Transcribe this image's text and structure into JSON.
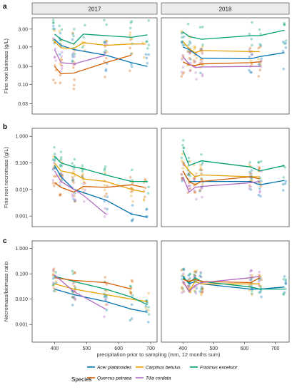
{
  "chart_data": {
    "type": "scatter",
    "facets": [
      "2017",
      "2018"
    ],
    "xlabel": "precipitation prior to sampling (mm, 12 months sum)",
    "x_ticks": [
      400,
      500,
      600,
      700
    ],
    "legend": {
      "title": "Species",
      "placement": "bottom",
      "items": [
        {
          "name": "Acer platanoides",
          "color": "#0072B2"
        },
        {
          "name": "Carpinus betulus",
          "color": "#E69F00"
        },
        {
          "name": "Fraxinus excelsior",
          "color": "#009E73"
        },
        {
          "name": "Quercus petraea",
          "color": "#D55E00"
        },
        {
          "name": "Tilia cordata",
          "color": "#B069C0"
        }
      ]
    },
    "panels": [
      {
        "tag": "a",
        "ylabel": "Fine root biomass (g/L)",
        "y_scale": "log",
        "ylim": [
          0.016,
          6
        ],
        "y_ticks": [
          0.03,
          0.1,
          0.3,
          1.0,
          3.0
        ],
        "y_tick_labels": [
          "0.03",
          "0.10",
          "0.30",
          "1.00",
          "3.00"
        ],
        "series": {
          "2017": [
            {
              "species": "Acer platanoides",
              "x": [
                400,
                420,
                460,
                560,
                640,
                690
              ],
              "y": [
                1.6,
                1.1,
                0.85,
                0.6,
                0.38,
                0.3
              ]
            },
            {
              "species": "Carpinus betulus",
              "x": [
                400,
                420,
                460,
                490,
                560,
                640,
                680
              ],
              "y": [
                1.4,
                0.95,
                0.9,
                1.3,
                1.1,
                1.2,
                1.2
              ]
            },
            {
              "species": "Fraxinus excelsior",
              "x": [
                400,
                420,
                460,
                490,
                560,
                640,
                690
              ],
              "y": [
                2.2,
                1.6,
                1.2,
                2.2,
                2.0,
                1.8,
                2.1
              ]
            },
            {
              "species": "Quercus petraea",
              "x": [
                400,
                420,
                460,
                560,
                640
              ],
              "y": [
                0.3,
                0.19,
                0.2,
                0.38,
                0.6
              ]
            },
            {
              "species": "Tilia cordata",
              "x": [
                400,
                420,
                460,
                560
              ],
              "y": [
                0.85,
                0.38,
                0.35,
                0.6
              ]
            }
          ],
          "2018": [
            {
              "species": "Acer platanoides",
              "x": [
                400,
                420,
                460,
                620,
                650,
                730
              ],
              "y": [
                1.0,
                0.85,
                0.5,
                0.48,
                0.55,
                0.7
              ]
            },
            {
              "species": "Carpinus betulus",
              "x": [
                400,
                420,
                440,
                460,
                620,
                650
              ],
              "y": [
                1.4,
                0.9,
                0.7,
                0.8,
                0.75,
                0.75
              ]
            },
            {
              "species": "Fraxinus excelsior",
              "x": [
                400,
                420,
                460,
                620,
                650,
                730
              ],
              "y": [
                2.5,
                1.9,
                1.6,
                2.0,
                2.0,
                2.8
              ]
            },
            {
              "species": "Quercus petraea",
              "x": [
                400,
                420,
                440,
                460,
                620,
                650
              ],
              "y": [
                0.4,
                0.33,
                0.32,
                0.35,
                0.38,
                0.4
              ]
            },
            {
              "species": "Tilia cordata",
              "x": [
                400,
                420,
                440,
                460,
                620,
                650
              ],
              "y": [
                0.55,
                0.35,
                0.28,
                0.29,
                0.3,
                0.3
              ]
            }
          ]
        }
      },
      {
        "tag": "b",
        "ylabel": "Fine root necromass (g/L)",
        "y_scale": "log",
        "ylim": [
          0.0004,
          2
        ],
        "y_ticks": [
          0.001,
          0.01,
          0.1,
          1.0
        ],
        "y_tick_labels": [
          "0.001",
          "0.010",
          "0.100",
          "1.000"
        ],
        "series": {
          "2017": [
            {
              "species": "Acer platanoides",
              "x": [
                400,
                420,
                460,
                560,
                640,
                690
              ],
              "y": [
                0.08,
                0.03,
                0.01,
                0.004,
                0.0012,
                0.0009
              ]
            },
            {
              "species": "Carpinus betulus",
              "x": [
                400,
                420,
                460,
                490,
                560,
                640,
                680
              ],
              "y": [
                0.1,
                0.05,
                0.04,
                0.025,
                0.02,
                0.01,
                0.008
              ]
            },
            {
              "species": "Fraxinus excelsior",
              "x": [
                400,
                420,
                460,
                490,
                560,
                640,
                690
              ],
              "y": [
                0.18,
                0.1,
                0.07,
                0.06,
                0.035,
                0.02,
                0.02
              ]
            },
            {
              "species": "Quercus petraea",
              "x": [
                400,
                420,
                460,
                490,
                560,
                640,
                680
              ],
              "y": [
                0.018,
                0.012,
                0.008,
                0.013,
                0.012,
                0.015,
                0.012
              ]
            },
            {
              "species": "Tilia cordata",
              "x": [
                400,
                420,
                460,
                490,
                560
              ],
              "y": [
                0.05,
                0.02,
                0.01,
                0.006,
                0.0012
              ]
            }
          ],
          "2018": [
            {
              "species": "Acer platanoides",
              "x": [
                400,
                420,
                460,
                620,
                650,
                730
              ],
              "y": [
                0.05,
                0.02,
                0.02,
                0.02,
                0.015,
                0.022
              ]
            },
            {
              "species": "Carpinus betulus",
              "x": [
                400,
                420,
                440,
                460,
                620,
                650
              ],
              "y": [
                0.1,
                0.05,
                0.03,
                0.035,
                0.03,
                0.03
              ]
            },
            {
              "species": "Fraxinus excelsior",
              "x": [
                400,
                420,
                460,
                620,
                650,
                730
              ],
              "y": [
                0.3,
                0.08,
                0.12,
                0.07,
                0.05,
                0.08
              ]
            },
            {
              "species": "Quercus petraea",
              "x": [
                400,
                420,
                440,
                460,
                620,
                650
              ],
              "y": [
                0.05,
                0.02,
                0.015,
                0.02,
                0.03,
                0.025
              ]
            },
            {
              "species": "Tilia cordata",
              "x": [
                400,
                420,
                440,
                460,
                620,
                650
              ],
              "y": [
                0.03,
                0.008,
                0.012,
                0.013,
                0.018,
                0.02
              ]
            }
          ]
        }
      },
      {
        "tag": "c",
        "ylabel": "Necromass/biomass ratio",
        "y_scale": "log",
        "ylim": [
          0.0002,
          2
        ],
        "y_ticks": [
          0.001,
          0.01,
          0.1,
          1.0
        ],
        "y_tick_labels": [
          "0.001",
          "0.010",
          "0.100",
          "1.000"
        ],
        "series": {
          "2017": [
            {
              "species": "Acer platanoides",
              "x": [
                400,
                460,
                560,
                640,
                690
              ],
              "y": [
                0.025,
                0.015,
                0.008,
                0.004,
                0.003
              ]
            },
            {
              "species": "Carpinus betulus",
              "x": [
                400,
                460,
                560,
                640,
                690
              ],
              "y": [
                0.04,
                0.025,
                0.015,
                0.01,
                0.008
              ]
            },
            {
              "species": "Fraxinus excelsior",
              "x": [
                400,
                460,
                560,
                640,
                690
              ],
              "y": [
                0.08,
                0.05,
                0.025,
                0.012,
                0.006
              ]
            },
            {
              "species": "Quercus petraea",
              "x": [
                400,
                460,
                560,
                640
              ],
              "y": [
                0.07,
                0.055,
                0.045,
                0.025
              ]
            },
            {
              "species": "Tilia cordata",
              "x": [
                400,
                460,
                560
              ],
              "y": [
                0.09,
                0.02,
                0.004
              ]
            }
          ],
          "2018": [
            {
              "species": "Acer platanoides",
              "x": [
                400,
                420,
                440,
                460,
                620,
                650,
                730
              ],
              "y": [
                0.08,
                0.04,
                0.05,
                0.04,
                0.025,
                0.025,
                0.03
              ]
            },
            {
              "species": "Carpinus betulus",
              "x": [
                400,
                420,
                440,
                460,
                620,
                650
              ],
              "y": [
                0.05,
                0.02,
                0.05,
                0.04,
                0.04,
                0.04
              ]
            },
            {
              "species": "Fraxinus excelsior",
              "x": [
                400,
                420,
                440,
                460,
                620,
                650,
                730
              ],
              "y": [
                0.07,
                0.045,
                0.07,
                0.05,
                0.03,
                0.025,
                0.025
              ]
            },
            {
              "species": "Quercus petraea",
              "x": [
                400,
                420,
                440,
                460,
                620,
                650
              ],
              "y": [
                0.06,
                0.05,
                0.06,
                0.05,
                0.045,
                0.07
              ]
            },
            {
              "species": "Tilia cordata",
              "x": [
                400,
                420,
                440,
                460,
                620,
                650
              ],
              "y": [
                0.05,
                0.02,
                0.035,
                0.045,
                0.07,
                0.08
              ]
            }
          ]
        }
      }
    ]
  }
}
